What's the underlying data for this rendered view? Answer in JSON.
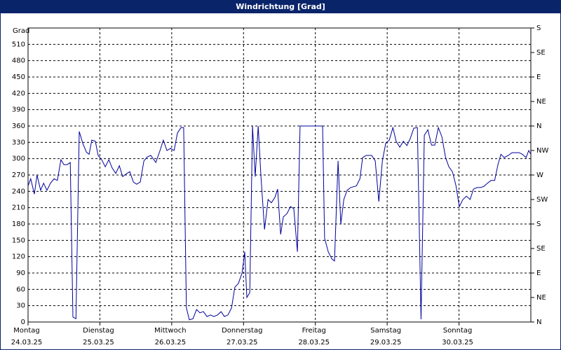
{
  "chart_data": {
    "type": "line",
    "title": "Windrichtung [Grad]",
    "y_label": "Grad",
    "x": [
      0,
      0.9,
      2.1,
      3.0,
      4.2,
      5.2,
      6.3,
      7.5,
      8.7,
      9.8,
      11.0,
      12.0,
      13.1,
      14.1,
      15.0,
      16.0,
      17.1,
      18.3,
      19.5,
      20.4,
      21.3,
      22.5,
      23.4,
      24.6,
      25.8,
      27.0,
      28.1,
      29.3,
      30.5,
      31.6,
      32.8,
      34.0,
      35.2,
      36.3,
      37.5,
      38.7,
      39.8,
      41.0,
      42.7,
      44.1,
      45.2,
      46.4,
      47.6,
      48.8,
      49.9,
      51.1,
      52.0,
      52.9,
      53.9,
      55.1,
      56.3,
      57.4,
      58.6,
      59.8,
      61.0,
      62.1,
      63.3,
      64.5,
      65.6,
      66.8,
      68.0,
      69.1,
      70.3,
      71.5,
      72.4,
      73.1,
      74.1,
      75.0,
      75.9,
      76.9,
      77.8,
      79.0,
      80.2,
      81.3,
      82.5,
      83.4,
      84.4,
      85.3,
      86.5,
      87.7,
      88.8,
      90.0,
      90.9,
      98.4,
      99.1,
      100.3,
      101.5,
      102.4,
      103.6,
      104.5,
      105.5,
      106.6,
      107.8,
      109.7,
      110.9,
      111.8,
      113.0,
      114.8,
      116.0,
      117.2,
      118.4,
      119.5,
      120.7,
      121.9,
      123.0,
      124.2,
      125.4,
      126.6,
      127.7,
      128.9,
      130.1,
      131.3,
      132.4,
      133.6,
      134.8,
      135.9,
      137.1,
      138.3,
      139.5,
      140.6,
      141.8,
      143.0,
      144.1,
      145.3,
      146.5,
      147.7,
      148.8,
      150.0,
      151.2,
      152.3,
      153.5,
      154.7,
      155.9,
      157.0,
      158.0,
      159.1,
      160.5,
      161.7,
      162.9,
      164.1,
      165.2,
      166.4,
      167.3,
      168.0
    ],
    "series": [
      {
        "name": "Windrichtung",
        "color": "#00009c",
        "values": [
          250,
          263,
          235,
          270,
          242,
          255,
          242,
          255,
          263,
          260,
          298,
          289,
          289,
          293,
          9,
          6,
          350,
          328,
          312,
          308,
          334,
          332,
          306,
          298,
          285,
          298,
          283,
          273,
          287,
          267,
          272,
          276,
          257,
          253,
          257,
          296,
          303,
          306,
          293,
          315,
          334,
          315,
          319,
          315,
          347,
          357,
          357,
          26,
          4,
          6,
          23,
          17,
          19,
          10,
          13,
          10,
          13,
          19,
          10,
          13,
          26,
          64,
          71,
          90,
          129,
          45,
          54,
          360,
          267,
          360,
          270,
          170,
          225,
          219,
          229,
          244,
          161,
          193,
          199,
          212,
          208,
          129,
          360,
          360,
          154,
          129,
          116,
          112,
          296,
          180,
          225,
          242,
          247,
          250,
          263,
          302,
          306,
          306,
          296,
          221,
          296,
          328,
          334,
          357,
          332,
          321,
          332,
          324,
          337,
          356,
          357,
          5,
          343,
          353,
          325,
          325,
          357,
          340,
          302,
          285,
          276,
          250,
          212,
          225,
          231,
          225,
          244,
          247,
          247,
          249,
          255,
          260,
          260,
          289,
          308,
          302,
          306,
          311,
          311,
          311,
          308,
          302,
          315,
          308
        ]
      }
    ],
    "xlim": [
      0,
      168
    ],
    "xticks": [
      {
        "value": 0,
        "label": "Montag",
        "date": "24.03.25"
      },
      {
        "value": 24,
        "label": "Dienstag",
        "date": "25.03.25"
      },
      {
        "value": 48,
        "label": "Mittwoch",
        "date": "26.03.25"
      },
      {
        "value": 72,
        "label": "Donnerstag",
        "date": "27.03.25"
      },
      {
        "value": 96,
        "label": "Freitag",
        "date": "28.03.25"
      },
      {
        "value": 120,
        "label": "Samstag",
        "date": "29.03.25"
      },
      {
        "value": 144,
        "label": "Sonntag",
        "date": "30.03.25"
      }
    ],
    "ylim": [
      0,
      540
    ],
    "yticks": [
      0,
      30,
      60,
      90,
      120,
      150,
      180,
      210,
      240,
      270,
      300,
      330,
      360,
      390,
      420,
      450,
      480,
      510
    ],
    "y2lim": [
      0,
      540
    ],
    "y2ticks": [
      {
        "value": 0,
        "label": "N"
      },
      {
        "value": 45,
        "label": "NE"
      },
      {
        "value": 90,
        "label": "E"
      },
      {
        "value": 135,
        "label": "SE"
      },
      {
        "value": 180,
        "label": "S"
      },
      {
        "value": 225,
        "label": "SW"
      },
      {
        "value": 270,
        "label": "W"
      },
      {
        "value": 315,
        "label": "NW"
      },
      {
        "value": 360,
        "label": "N"
      },
      {
        "value": 405,
        "label": "NE"
      },
      {
        "value": 450,
        "label": "E"
      },
      {
        "value": 495,
        "label": "SE"
      },
      {
        "value": 540,
        "label": "S"
      }
    ],
    "grid": true
  }
}
